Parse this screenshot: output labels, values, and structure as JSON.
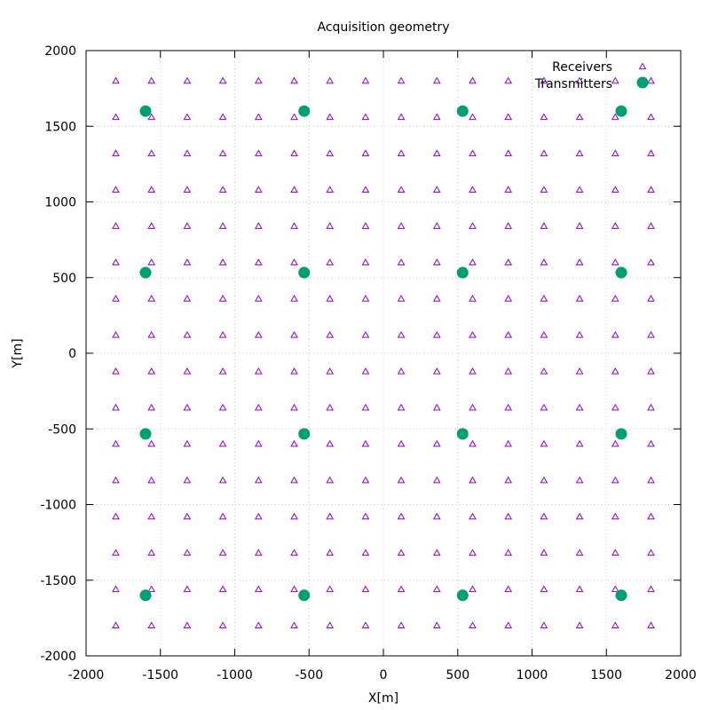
{
  "chart_data": {
    "type": "scatter",
    "title": "Acquisition geometry",
    "xlabel": "X[m]",
    "ylabel": "Y[m]",
    "xlim": [
      -2000,
      2000
    ],
    "ylim": [
      -2000,
      2000
    ],
    "xticks": [
      -2000,
      -1500,
      -1000,
      -500,
      0,
      500,
      1000,
      1500,
      2000
    ],
    "yticks": [
      -2000,
      -1500,
      -1000,
      -500,
      0,
      500,
      1000,
      1500,
      2000
    ],
    "grid": true,
    "legend_position": "top-right",
    "series": [
      {
        "name": "Receivers",
        "marker": "open-triangle",
        "color": "#9400d3",
        "grid_x": [
          -1800,
          -1560,
          -1320,
          -1080,
          -840,
          -600,
          -360,
          -120,
          120,
          360,
          600,
          840,
          1080,
          1320,
          1560,
          1800
        ],
        "grid_y": [
          -1800,
          -1560,
          -1320,
          -1080,
          -840,
          -600,
          -360,
          -120,
          120,
          360,
          600,
          840,
          1080,
          1320,
          1560,
          1800
        ]
      },
      {
        "name": "Transmitters",
        "marker": "filled-circle",
        "color": "#009e73",
        "grid_x": [
          -1600,
          -533,
          533,
          1600
        ],
        "grid_y": [
          -1600,
          -533,
          533,
          1600
        ]
      }
    ]
  }
}
